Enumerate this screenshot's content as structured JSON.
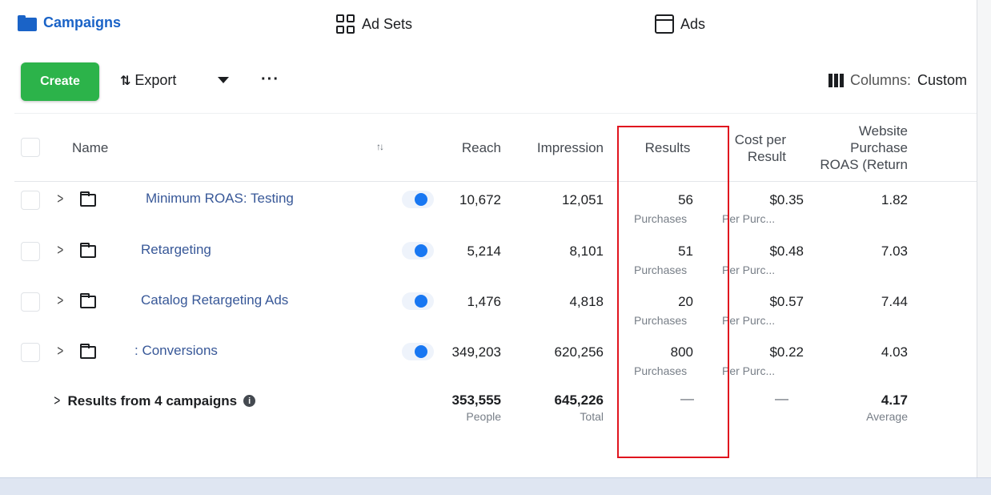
{
  "tabs": {
    "campaigns": "Campaigns",
    "ad_sets": "Ad Sets",
    "ads": "Ads"
  },
  "toolbar": {
    "create": "Create",
    "export": "Export",
    "more": "···",
    "columns_prefix": "Columns:",
    "columns_value": "Custom"
  },
  "columns": {
    "name": "Name",
    "reach": "Reach",
    "impressions": "Impression",
    "results": "Results",
    "cost_per_result_1": "Cost per",
    "cost_per_result_2": "Result",
    "roas_1": "Website",
    "roas_2": "Purchase",
    "roas_3": "ROAS (Return"
  },
  "rows": [
    {
      "name": "Minimum ROAS: Testing",
      "reach": "10,672",
      "impressions": "12,051",
      "results": "56",
      "results_sub": "Purchases",
      "cost": "$0.35",
      "cost_sub": "Per Purc...",
      "roas": "1.82",
      "active": true
    },
    {
      "name": "Retargeting",
      "reach": "5,214",
      "impressions": "8,101",
      "results": "51",
      "results_sub": "Purchases",
      "cost": "$0.48",
      "cost_sub": "Per Purc...",
      "roas": "7.03",
      "active": true
    },
    {
      "name": "Catalog Retargeting Ads",
      "reach": "1,476",
      "impressions": "4,818",
      "results": "20",
      "results_sub": "Purchases",
      "cost": "$0.57",
      "cost_sub": "Per Purc...",
      "roas": "7.44",
      "active": true
    },
    {
      "name": ": Conversions",
      "reach": "349,203",
      "impressions": "620,256",
      "results": "800",
      "results_sub": "Purchases",
      "cost": "$0.22",
      "cost_sub": "Per Purc...",
      "roas": "4.03",
      "active": true
    }
  ],
  "totals": {
    "label": "Results from 4 campaigns",
    "reach": "353,555",
    "reach_sub": "People",
    "impressions": "645,226",
    "impressions_sub": "Total",
    "results": "—",
    "cost": "—",
    "roas": "4.17",
    "roas_sub": "Average"
  },
  "colors": {
    "brand_blue": "#1a63c7",
    "create_green": "#2cb34a",
    "link_blue": "#385898",
    "toggle_blue": "#1877f2",
    "highlight_red": "#e0141e"
  }
}
